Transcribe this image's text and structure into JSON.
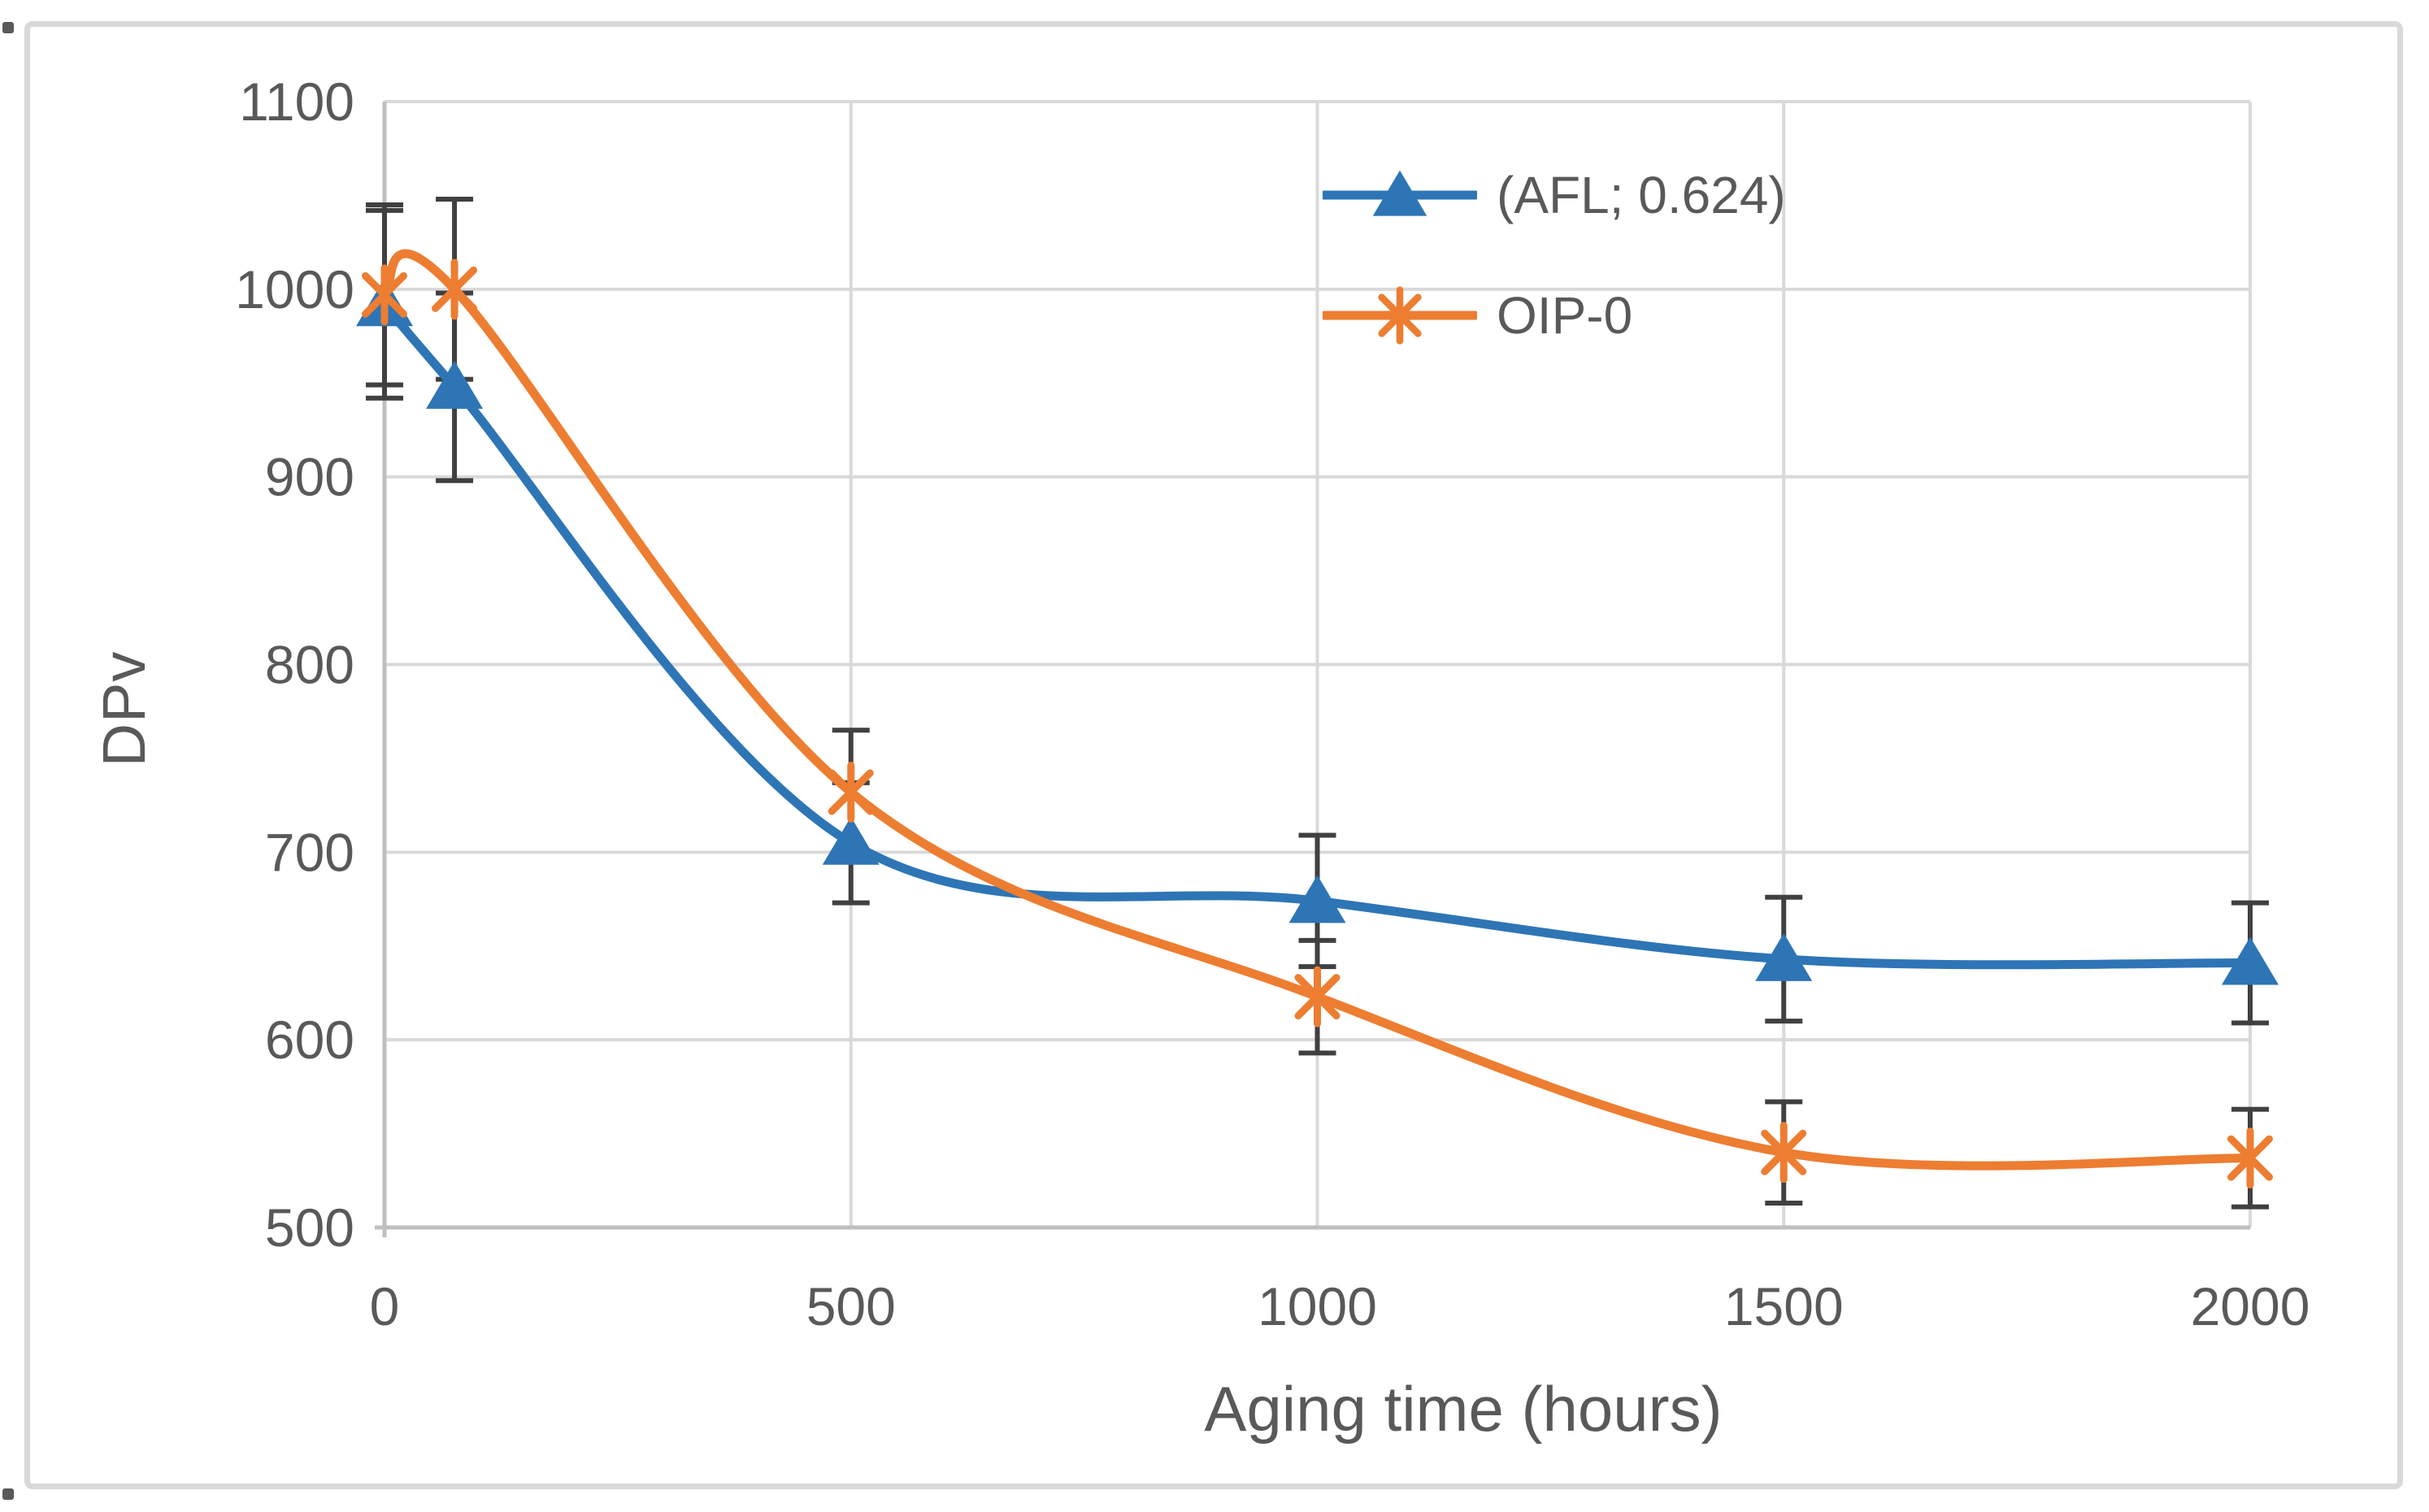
{
  "figure": {
    "background": "#ffffff",
    "border_color": "#d9d9d9",
    "stray_marks": [
      "top-left-dot",
      "bottom-left-dot"
    ]
  },
  "chart_data": {
    "type": "line",
    "title": "",
    "xlabel": "Aging time (hours)",
    "ylabel": "DPv",
    "xlim": [
      0,
      2000
    ],
    "ylim": [
      500,
      1100
    ],
    "xticks": [
      0,
      500,
      1000,
      1500,
      2000
    ],
    "yticks": [
      500,
      600,
      700,
      800,
      900,
      1000,
      1100
    ],
    "grid": true,
    "legend": {
      "position": "top-right-inside",
      "items": [
        "(AFL; 0.624)",
        "OIP-0"
      ]
    },
    "styles": {
      "grid_color": "#d9d9d9",
      "axis_color": "#bfbfbf",
      "tick_label_color": "#595959",
      "error_bar_color": "#404040",
      "line_width": 11,
      "smoothed_lines": true
    },
    "series": [
      {
        "name": "(AFL; 0.624)",
        "color": "#2e75b6",
        "marker": "triangle",
        "x": [
          0,
          75,
          500,
          1000,
          1500,
          2000
        ],
        "y": [
          992,
          948,
          705,
          674,
          643,
          641
        ],
        "yerr": [
          50,
          50,
          32,
          35,
          33,
          32
        ]
      },
      {
        "name": "OIP-0",
        "color": "#ed7d31",
        "marker": "asterisk",
        "x": [
          0,
          75,
          500,
          1000,
          1500,
          2000
        ],
        "y": [
          997,
          1000,
          732,
          623,
          540,
          537
        ],
        "yerr": [
          48,
          48,
          33,
          30,
          27,
          26
        ]
      }
    ]
  }
}
